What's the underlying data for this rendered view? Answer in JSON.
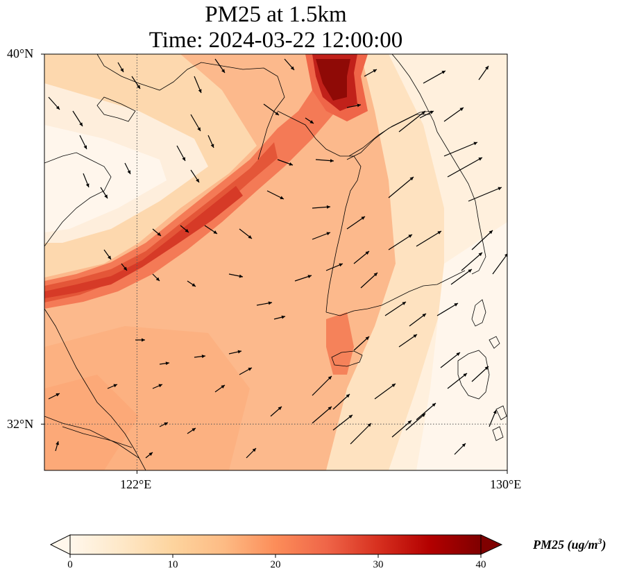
{
  "title": {
    "line1": "PM25 at 1.5km",
    "line2": "Time: 2024-03-22 12:00:00"
  },
  "map": {
    "lat_ticks": [
      "40°N",
      "32°N"
    ],
    "lon_ticks": [
      "122°E",
      "130°E"
    ],
    "extent": {
      "lon": [
        120,
        130
      ],
      "lat": [
        31,
        40
      ]
    },
    "gridlines": {
      "lon": 122,
      "lat": 32,
      "style": "dotted"
    },
    "features": [
      "coastline",
      "wind-vectors"
    ]
  },
  "colorbar": {
    "label": "PM25 (ug/m",
    "label_sup": "3",
    "label_close": ")",
    "ticks": [
      "0",
      "10",
      "20",
      "30",
      "40"
    ],
    "range": [
      0,
      40
    ],
    "cmap": "OrRd",
    "colors": [
      "#fff7ec",
      "#fee8c8",
      "#fdd49e",
      "#fdbb84",
      "#fc8d59",
      "#ef6548",
      "#d7301f",
      "#b30000",
      "#7f0000"
    ],
    "extend": "both"
  }
}
